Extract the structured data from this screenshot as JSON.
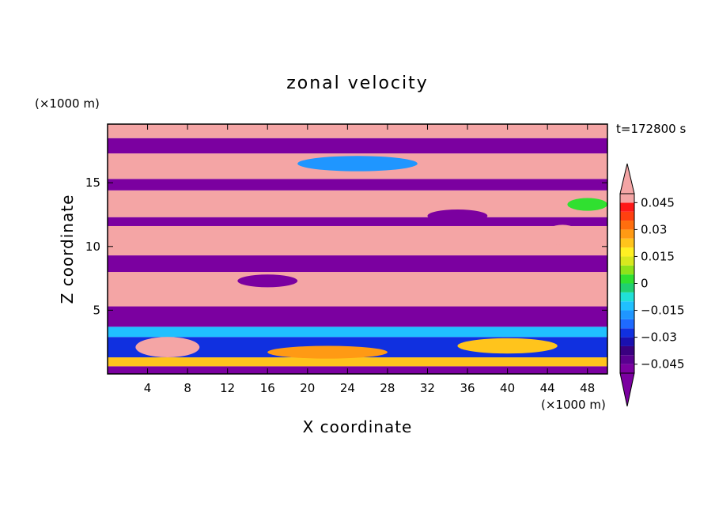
{
  "chart_data": {
    "type": "heatmap",
    "title": "zonal velocity",
    "xlabel": "X coordinate",
    "ylabel": "Z coordinate",
    "x_unit": "(×1000 m)",
    "y_unit": "(×1000 m)",
    "time_label": "t=172800 s",
    "x_range": [
      0,
      50
    ],
    "y_range": [
      0,
      19.6
    ],
    "x_ticks": [
      "4",
      "8",
      "12",
      "16",
      "20",
      "24",
      "28",
      "32",
      "36",
      "40",
      "44",
      "48"
    ],
    "y_ticks": [
      "5",
      "10",
      "15"
    ],
    "colorbar": {
      "min": -0.05,
      "max": 0.05,
      "step": 0.005,
      "extend": "both",
      "tick_labels": [
        "0.045",
        "0.03",
        "0.015",
        "0",
        "−0.015",
        "−0.03",
        "−0.045"
      ],
      "colors": [
        "#7b00a0",
        "#5a0090",
        "#3a0080",
        "#1a10b0",
        "#1030e0",
        "#1e6aff",
        "#1f96ff",
        "#20c0ff",
        "#20e0d8",
        "#20d070",
        "#30e030",
        "#8ee21a",
        "#d8e81e",
        "#fff023",
        "#ffc41c",
        "#ff9a14",
        "#ff6e0e",
        "#ff4010",
        "#ff1818",
        "#f4a5a5"
      ]
    },
    "bands": [
      {
        "z_range": [
          0.0,
          0.6
        ],
        "u": -0.048
      },
      {
        "z_range": [
          0.6,
          1.3
        ],
        "u": 0.02
      },
      {
        "z_range": [
          1.3,
          2.9
        ],
        "u": -0.03
      },
      {
        "z_range": [
          2.9,
          3.7
        ],
        "u": -0.01
      },
      {
        "z_range": [
          3.7,
          5.3
        ],
        "u": -0.05
      },
      {
        "z_range": [
          5.3,
          8.0
        ],
        "u": 0.05
      },
      {
        "z_range": [
          8.0,
          9.3
        ],
        "u": -0.05
      },
      {
        "z_range": [
          9.3,
          11.6
        ],
        "u": 0.05
      },
      {
        "z_range": [
          11.6,
          12.3
        ],
        "u": -0.05
      },
      {
        "z_range": [
          12.3,
          14.4
        ],
        "u": 0.05
      },
      {
        "z_range": [
          14.4,
          15.3
        ],
        "u": -0.05
      },
      {
        "z_range": [
          15.3,
          17.3
        ],
        "u": 0.05
      },
      {
        "z_range": [
          17.3,
          18.5
        ],
        "u": -0.05
      },
      {
        "z_range": [
          18.5,
          19.6
        ],
        "u": 0.05
      }
    ],
    "patches": [
      {
        "x": 6,
        "z": 2.1,
        "rx": 3.2,
        "rz": 0.8,
        "u": 0.05
      },
      {
        "x": 22,
        "z": 1.7,
        "rx": 6,
        "rz": 0.5,
        "u": 0.03
      },
      {
        "x": 40,
        "z": 2.2,
        "rx": 5,
        "rz": 0.6,
        "u": 0.02
      },
      {
        "x": 45.5,
        "z": 10.9,
        "rx": 1.8,
        "rz": 0.8,
        "u": 0.05
      },
      {
        "x": 35,
        "z": 12.4,
        "rx": 3,
        "rz": 0.5,
        "u": -0.05
      },
      {
        "x": 25,
        "z": 16.5,
        "rx": 6,
        "rz": 0.6,
        "u": -0.02
      },
      {
        "x": 16,
        "z": 7.3,
        "rx": 3,
        "rz": 0.5,
        "u": -0.05
      },
      {
        "x": 48,
        "z": 13.3,
        "rx": 2,
        "rz": 0.5,
        "u": 0.0
      }
    ]
  }
}
